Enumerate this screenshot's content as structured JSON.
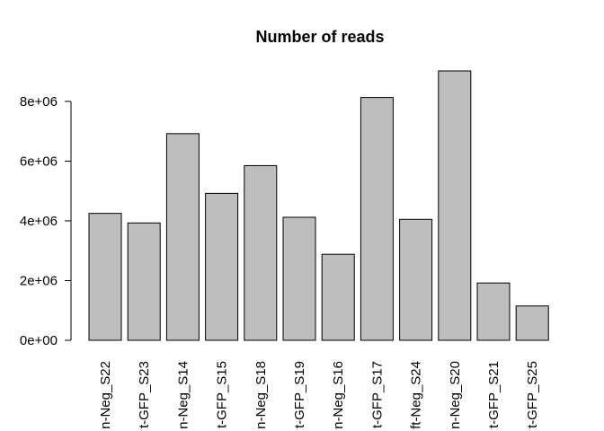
{
  "chart_data": {
    "type": "bar",
    "title": "Number of reads",
    "xlabel": "",
    "ylabel": "",
    "categories": [
      "n-Neg_S22",
      "t-GFP_S23",
      "n-Neg_S14",
      "t-GFP_S15",
      "n-Neg_S18",
      "t-GFP_S19",
      "n-Neg_S16",
      "t-GFP_S17",
      "ft-Neg_S24",
      "n-Neg_S20",
      "t-GFP_S21",
      "t-GFP_S25"
    ],
    "values": [
      4250000,
      3930000,
      6920000,
      4920000,
      5850000,
      4120000,
      2880000,
      8130000,
      4050000,
      9020000,
      1920000,
      1150000
    ],
    "ylim": [
      0,
      9020000
    ],
    "yticks": [
      0,
      2000000,
      4000000,
      6000000,
      8000000
    ],
    "ytick_labels": [
      "0e+00",
      "2e+06",
      "4e+06",
      "6e+06",
      "8e+06"
    ],
    "grid": false,
    "legend": "none",
    "bar_color": "#bebebe"
  }
}
